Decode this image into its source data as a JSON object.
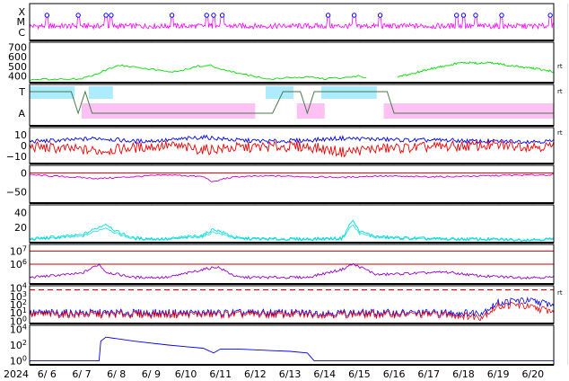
{
  "chart_data": {
    "type": "line",
    "title": "",
    "x_year": "2024",
    "x_ticks": [
      "6/ 6",
      "6/ 7",
      "6/ 8",
      "6/ 9",
      "6/10",
      "6/11",
      "6/12",
      "6/13",
      "6/14",
      "6/15",
      "6/16",
      "6/17",
      "6/18",
      "6/19",
      "6/20"
    ],
    "x_range_days": [
      0,
      15.1
    ],
    "grid": true,
    "panels": [
      {
        "id": "xray_class",
        "type": "event-markers",
        "y_labels": [
          "X",
          "M",
          "C"
        ],
        "color": "#ff00ff",
        "marker_color": "#0000ff",
        "event_days": [
          0.5,
          1.4,
          2.2,
          2.35,
          4.1,
          5.1,
          5.3,
          5.55,
          8.6,
          9.35,
          10.1,
          12.3,
          12.5,
          12.85,
          13.6,
          15.0
        ]
      },
      {
        "id": "solar_wind_speed",
        "y_ticks": [
          "700",
          "600",
          "500",
          "400"
        ],
        "ylim": [
          330,
          750
        ],
        "color": "#00dd00",
        "right_label": "rt",
        "segments": [
          {
            "x": [
              0,
              1.5,
              2.0,
              2.3,
              2.6,
              3.0,
              3.5,
              4.0,
              4.6,
              4.8,
              5.2,
              5.6,
              6.0,
              6.5,
              7.0,
              7.5,
              8.0,
              8.5,
              9.0,
              9.5,
              9.7
            ],
            "y": [
              360,
              370,
              430,
              480,
              510,
              500,
              470,
              440,
              470,
              500,
              510,
              460,
              430,
              390,
              370,
              380,
              390,
              370,
              380,
              400,
              380
            ]
          },
          {
            "x": [
              10.6,
              11.0,
              11.5,
              12.0,
              12.5,
              13.0,
              13.2,
              13.6,
              14.0,
              14.5,
              15.0,
              15.1
            ],
            "y": [
              390,
              420,
              470,
              510,
              540,
              530,
              540,
              520,
              500,
              480,
              450,
              440
            ]
          }
        ]
      },
      {
        "id": "imf_polarity",
        "y_labels": [
          "T",
          "A"
        ],
        "right_label": "rt",
        "colors": {
          "T": "#99e6ff",
          "A": "#ffb0f0",
          "line": "#4a7a4a"
        },
        "toward_days": [
          [
            0,
            1.3
          ],
          [
            1.7,
            2.4
          ],
          [
            6.8,
            7.6
          ],
          [
            8.4,
            10.0
          ]
        ],
        "away_days": [
          [
            1.5,
            6.5
          ],
          [
            7.7,
            8.5
          ],
          [
            10.2,
            15.1
          ]
        ]
      },
      {
        "id": "imf_b",
        "y_ticks": [
          "10",
          "0",
          "−10"
        ],
        "ylim": [
          -17,
          17
        ],
        "right_label": "rt",
        "series": [
          {
            "name": "",
            "color": "#0000ee",
            "x": [
              0,
              1,
              2,
              3,
              4,
              5,
              6,
              7,
              8,
              9,
              10,
              11,
              12,
              13,
              14,
              15.1
            ],
            "y": [
              4,
              5,
              7,
              4,
              5,
              8,
              5,
              4,
              5,
              7,
              6,
              5,
              5,
              4,
              4,
              4
            ]
          },
          {
            "name": "",
            "color": "#ee0000",
            "x": [
              0,
              1,
              2,
              3,
              4,
              5,
              6,
              7,
              8,
              9,
              10,
              11,
              12,
              13,
              14,
              15.1
            ],
            "y": [
              -1,
              -3,
              -5,
              -2,
              0,
              -4,
              -2,
              -1,
              -1,
              -6,
              -3,
              -2,
              -1,
              0,
              0,
              -1
            ]
          }
        ]
      },
      {
        "id": "dst",
        "y_ticks": [
          "0",
          "−50"
        ],
        "ylim": [
          -80,
          20
        ],
        "color": "#cc00cc",
        "reference_line": 0,
        "x": [
          0,
          1,
          2,
          3,
          4,
          5,
          5.3,
          5.6,
          6,
          7,
          8,
          9,
          10,
          11,
          12,
          13,
          14,
          15.1
        ],
        "y": [
          -5,
          -10,
          -15,
          -10,
          -5,
          -10,
          -25,
          -15,
          -10,
          -8,
          -10,
          -12,
          -8,
          -10,
          -10,
          -8,
          -6,
          -5
        ]
      },
      {
        "id": "proton_flux",
        "y_ticks": [
          "40",
          "20"
        ],
        "ylim": [
          0,
          50
        ],
        "color": "#00dddd",
        "x": [
          0,
          1.5,
          2.2,
          2.5,
          3,
          4,
          5,
          5.3,
          6,
          7,
          8,
          9,
          9.3,
          9.5,
          10,
          11,
          12,
          13,
          14,
          15.1
        ],
        "y": [
          5,
          10,
          25,
          15,
          6,
          5,
          10,
          18,
          6,
          5,
          5,
          6,
          30,
          15,
          8,
          6,
          5,
          5,
          4,
          5
        ]
      },
      {
        "id": "electron_flux",
        "y_ticks": [
          "10^7",
          "10^6"
        ],
        "scale": "log",
        "ylim_log10": [
          4.5,
          7.5
        ],
        "color": "#9900cc",
        "reference_lines_log10": [
          7,
          6
        ],
        "x": [
          0,
          1.5,
          2.0,
          2.2,
          3,
          4,
          5,
          5.4,
          6,
          8,
          9.0,
          9.3,
          9.6,
          10,
          11,
          12,
          13,
          14,
          15.1
        ],
        "y_log10": [
          5,
          5.3,
          6.0,
          5.4,
          5,
          5,
          5.6,
          5.8,
          5,
          5,
          5.6,
          6.0,
          5.7,
          5.2,
          5.3,
          5.4,
          5.1,
          5,
          5
        ]
      },
      {
        "id": "cosmic_ray",
        "y_ticks": [
          "10^4",
          "10^3",
          "10^2",
          "10^1",
          "10^0"
        ],
        "scale": "log",
        "ylim_log10": [
          -0.3,
          4.3
        ],
        "right_label": "rt",
        "threshold_log10": 3.8,
        "series": [
          {
            "name": "",
            "color": "#0000ee",
            "x": [
              0,
              3,
              6,
              9,
              12,
              13,
              13.5,
              14,
              14.5,
              15.1
            ],
            "y_log10": [
              1,
              1,
              1,
              1,
              1,
              1,
              2.2,
              2.5,
              2.4,
              2.0
            ]
          },
          {
            "name": "",
            "color": "#ee0000",
            "x": [
              0,
              3,
              6,
              9,
              12,
              13,
              13.5,
              14,
              14.5,
              15.1
            ],
            "y_log10": [
              0.8,
              0.8,
              0.8,
              0.8,
              0.8,
              0.5,
              1.8,
              2.0,
              1.6,
              1.2
            ]
          }
        ]
      },
      {
        "id": "solar_proton",
        "y_ticks": [
          "10^4",
          "10^2",
          "10^0"
        ],
        "scale": "log",
        "ylim_log10": [
          -0.5,
          4.5
        ],
        "color": "#0000ee",
        "x": [
          0,
          2.0,
          2.05,
          2.2,
          3,
          4,
          4.5,
          5,
          5.3,
          5.5,
          6,
          6.5,
          7,
          7.5,
          8,
          8.2,
          9,
          10,
          11,
          12,
          13,
          14,
          15.1
        ],
        "y_log10": [
          0,
          0,
          2.5,
          3.0,
          2.5,
          2.0,
          1.8,
          1.6,
          1.0,
          1.5,
          1.5,
          1.4,
          1.3,
          1.2,
          1.0,
          0,
          0,
          0,
          0,
          0,
          0,
          0,
          0
        ]
      }
    ]
  }
}
